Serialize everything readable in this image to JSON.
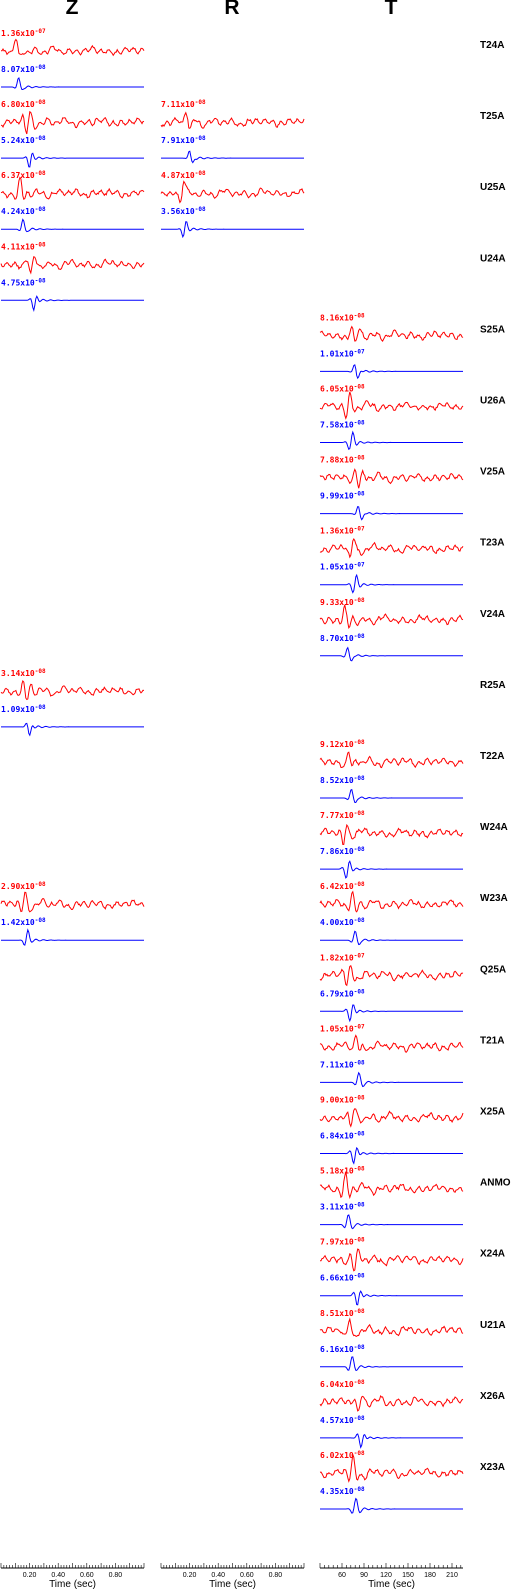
{
  "chart_data": {
    "type": "line",
    "columns": [
      {
        "title": "Z",
        "xlabel": "Time (sec)",
        "ticks": [
          "0.20",
          "0.40",
          "0.60",
          "0.80"
        ]
      },
      {
        "title": "R",
        "xlabel": "Time (sec)",
        "ticks": [
          "0.20",
          "0.40",
          "0.60",
          "0.80"
        ]
      },
      {
        "title": "T",
        "xlabel": "Time (sec)",
        "ticks": [
          "60",
          "90",
          "120",
          "150",
          "180",
          "210"
        ]
      }
    ],
    "colors": {
      "observed": "#ff0000",
      "synthetic": "#0000ff"
    },
    "stations": [
      {
        "name": "T24A",
        "traces": [
          {
            "col": 0,
            "obs": {
              "mant": "1.36",
              "exp": "-07"
            },
            "syn": {
              "mant": "8.07",
              "exp": "-08"
            }
          }
        ]
      },
      {
        "name": "T25A",
        "traces": [
          {
            "col": 0,
            "obs": {
              "mant": "6.80",
              "exp": "-08"
            },
            "syn": {
              "mant": "5.24",
              "exp": "-08"
            }
          },
          {
            "col": 1,
            "obs": {
              "mant": "7.11",
              "exp": "-08"
            },
            "syn": {
              "mant": "7.91",
              "exp": "-08"
            }
          }
        ]
      },
      {
        "name": "U25A",
        "traces": [
          {
            "col": 0,
            "obs": {
              "mant": "6.37",
              "exp": "-08"
            },
            "syn": {
              "mant": "4.24",
              "exp": "-08"
            }
          },
          {
            "col": 1,
            "obs": {
              "mant": "4.87",
              "exp": "-08"
            },
            "syn": {
              "mant": "3.56",
              "exp": "-08"
            }
          }
        ]
      },
      {
        "name": "U24A",
        "traces": [
          {
            "col": 0,
            "obs": {
              "mant": "4.11",
              "exp": "-08"
            },
            "syn": {
              "mant": "4.75",
              "exp": "-08"
            }
          }
        ]
      },
      {
        "name": "S25A",
        "traces": [
          {
            "col": 2,
            "obs": {
              "mant": "8.16",
              "exp": "-08"
            },
            "syn": {
              "mant": "1.01",
              "exp": "-07"
            }
          }
        ]
      },
      {
        "name": "U26A",
        "traces": [
          {
            "col": 2,
            "obs": {
              "mant": "6.05",
              "exp": "-08"
            },
            "syn": {
              "mant": "7.58",
              "exp": "-08"
            }
          }
        ]
      },
      {
        "name": "V25A",
        "traces": [
          {
            "col": 2,
            "obs": {
              "mant": "7.88",
              "exp": "-08"
            },
            "syn": {
              "mant": "9.99",
              "exp": "-08"
            }
          }
        ]
      },
      {
        "name": "T23A",
        "traces": [
          {
            "col": 2,
            "obs": {
              "mant": "1.36",
              "exp": "-07"
            },
            "syn": {
              "mant": "1.05",
              "exp": "-07"
            }
          }
        ]
      },
      {
        "name": "V24A",
        "traces": [
          {
            "col": 2,
            "obs": {
              "mant": "9.33",
              "exp": "-08"
            },
            "syn": {
              "mant": "8.70",
              "exp": "-08"
            }
          }
        ]
      },
      {
        "name": "R25A",
        "traces": [
          {
            "col": 0,
            "obs": {
              "mant": "3.14",
              "exp": "-08"
            },
            "syn": {
              "mant": "1.09",
              "exp": "-08"
            }
          }
        ]
      },
      {
        "name": "T22A",
        "traces": [
          {
            "col": 2,
            "obs": {
              "mant": "9.12",
              "exp": "-08"
            },
            "syn": {
              "mant": "8.52",
              "exp": "-08"
            }
          }
        ]
      },
      {
        "name": "W24A",
        "traces": [
          {
            "col": 2,
            "obs": {
              "mant": "7.77",
              "exp": "-08"
            },
            "syn": {
              "mant": "7.86",
              "exp": "-08"
            }
          }
        ]
      },
      {
        "name": "W23A",
        "traces": [
          {
            "col": 0,
            "obs": {
              "mant": "2.90",
              "exp": "-08"
            },
            "syn": {
              "mant": "1.42",
              "exp": "-08"
            }
          },
          {
            "col": 2,
            "obs": {
              "mant": "6.42",
              "exp": "-08"
            },
            "syn": {
              "mant": "4.00",
              "exp": "-08"
            }
          }
        ]
      },
      {
        "name": "Q25A",
        "traces": [
          {
            "col": 2,
            "obs": {
              "mant": "1.82",
              "exp": "-07"
            },
            "syn": {
              "mant": "6.79",
              "exp": "-08"
            }
          }
        ]
      },
      {
        "name": "T21A",
        "traces": [
          {
            "col": 2,
            "obs": {
              "mant": "1.05",
              "exp": "-07"
            },
            "syn": {
              "mant": "7.11",
              "exp": "-08"
            }
          }
        ]
      },
      {
        "name": "X25A",
        "traces": [
          {
            "col": 2,
            "obs": {
              "mant": "9.00",
              "exp": "-08"
            },
            "syn": {
              "mant": "6.84",
              "exp": "-08"
            }
          }
        ]
      },
      {
        "name": "ANMO",
        "traces": [
          {
            "col": 2,
            "obs": {
              "mant": "5.18",
              "exp": "-08"
            },
            "syn": {
              "mant": "3.11",
              "exp": "-08"
            }
          }
        ]
      },
      {
        "name": "X24A",
        "traces": [
          {
            "col": 2,
            "obs": {
              "mant": "7.97",
              "exp": "-08"
            },
            "syn": {
              "mant": "6.66",
              "exp": "-08"
            }
          }
        ]
      },
      {
        "name": "U21A",
        "traces": [
          {
            "col": 2,
            "obs": {
              "mant": "8.51",
              "exp": "-08"
            },
            "syn": {
              "mant": "6.16",
              "exp": "-08"
            }
          }
        ]
      },
      {
        "name": "X26A",
        "traces": [
          {
            "col": 2,
            "obs": {
              "mant": "6.04",
              "exp": "-08"
            },
            "syn": {
              "mant": "4.57",
              "exp": "-08"
            }
          }
        ]
      },
      {
        "name": "X23A",
        "traces": [
          {
            "col": 2,
            "obs": {
              "mant": "6.02",
              "exp": "-08"
            },
            "syn": {
              "mant": "4.35",
              "exp": "-08"
            }
          }
        ]
      }
    ]
  }
}
